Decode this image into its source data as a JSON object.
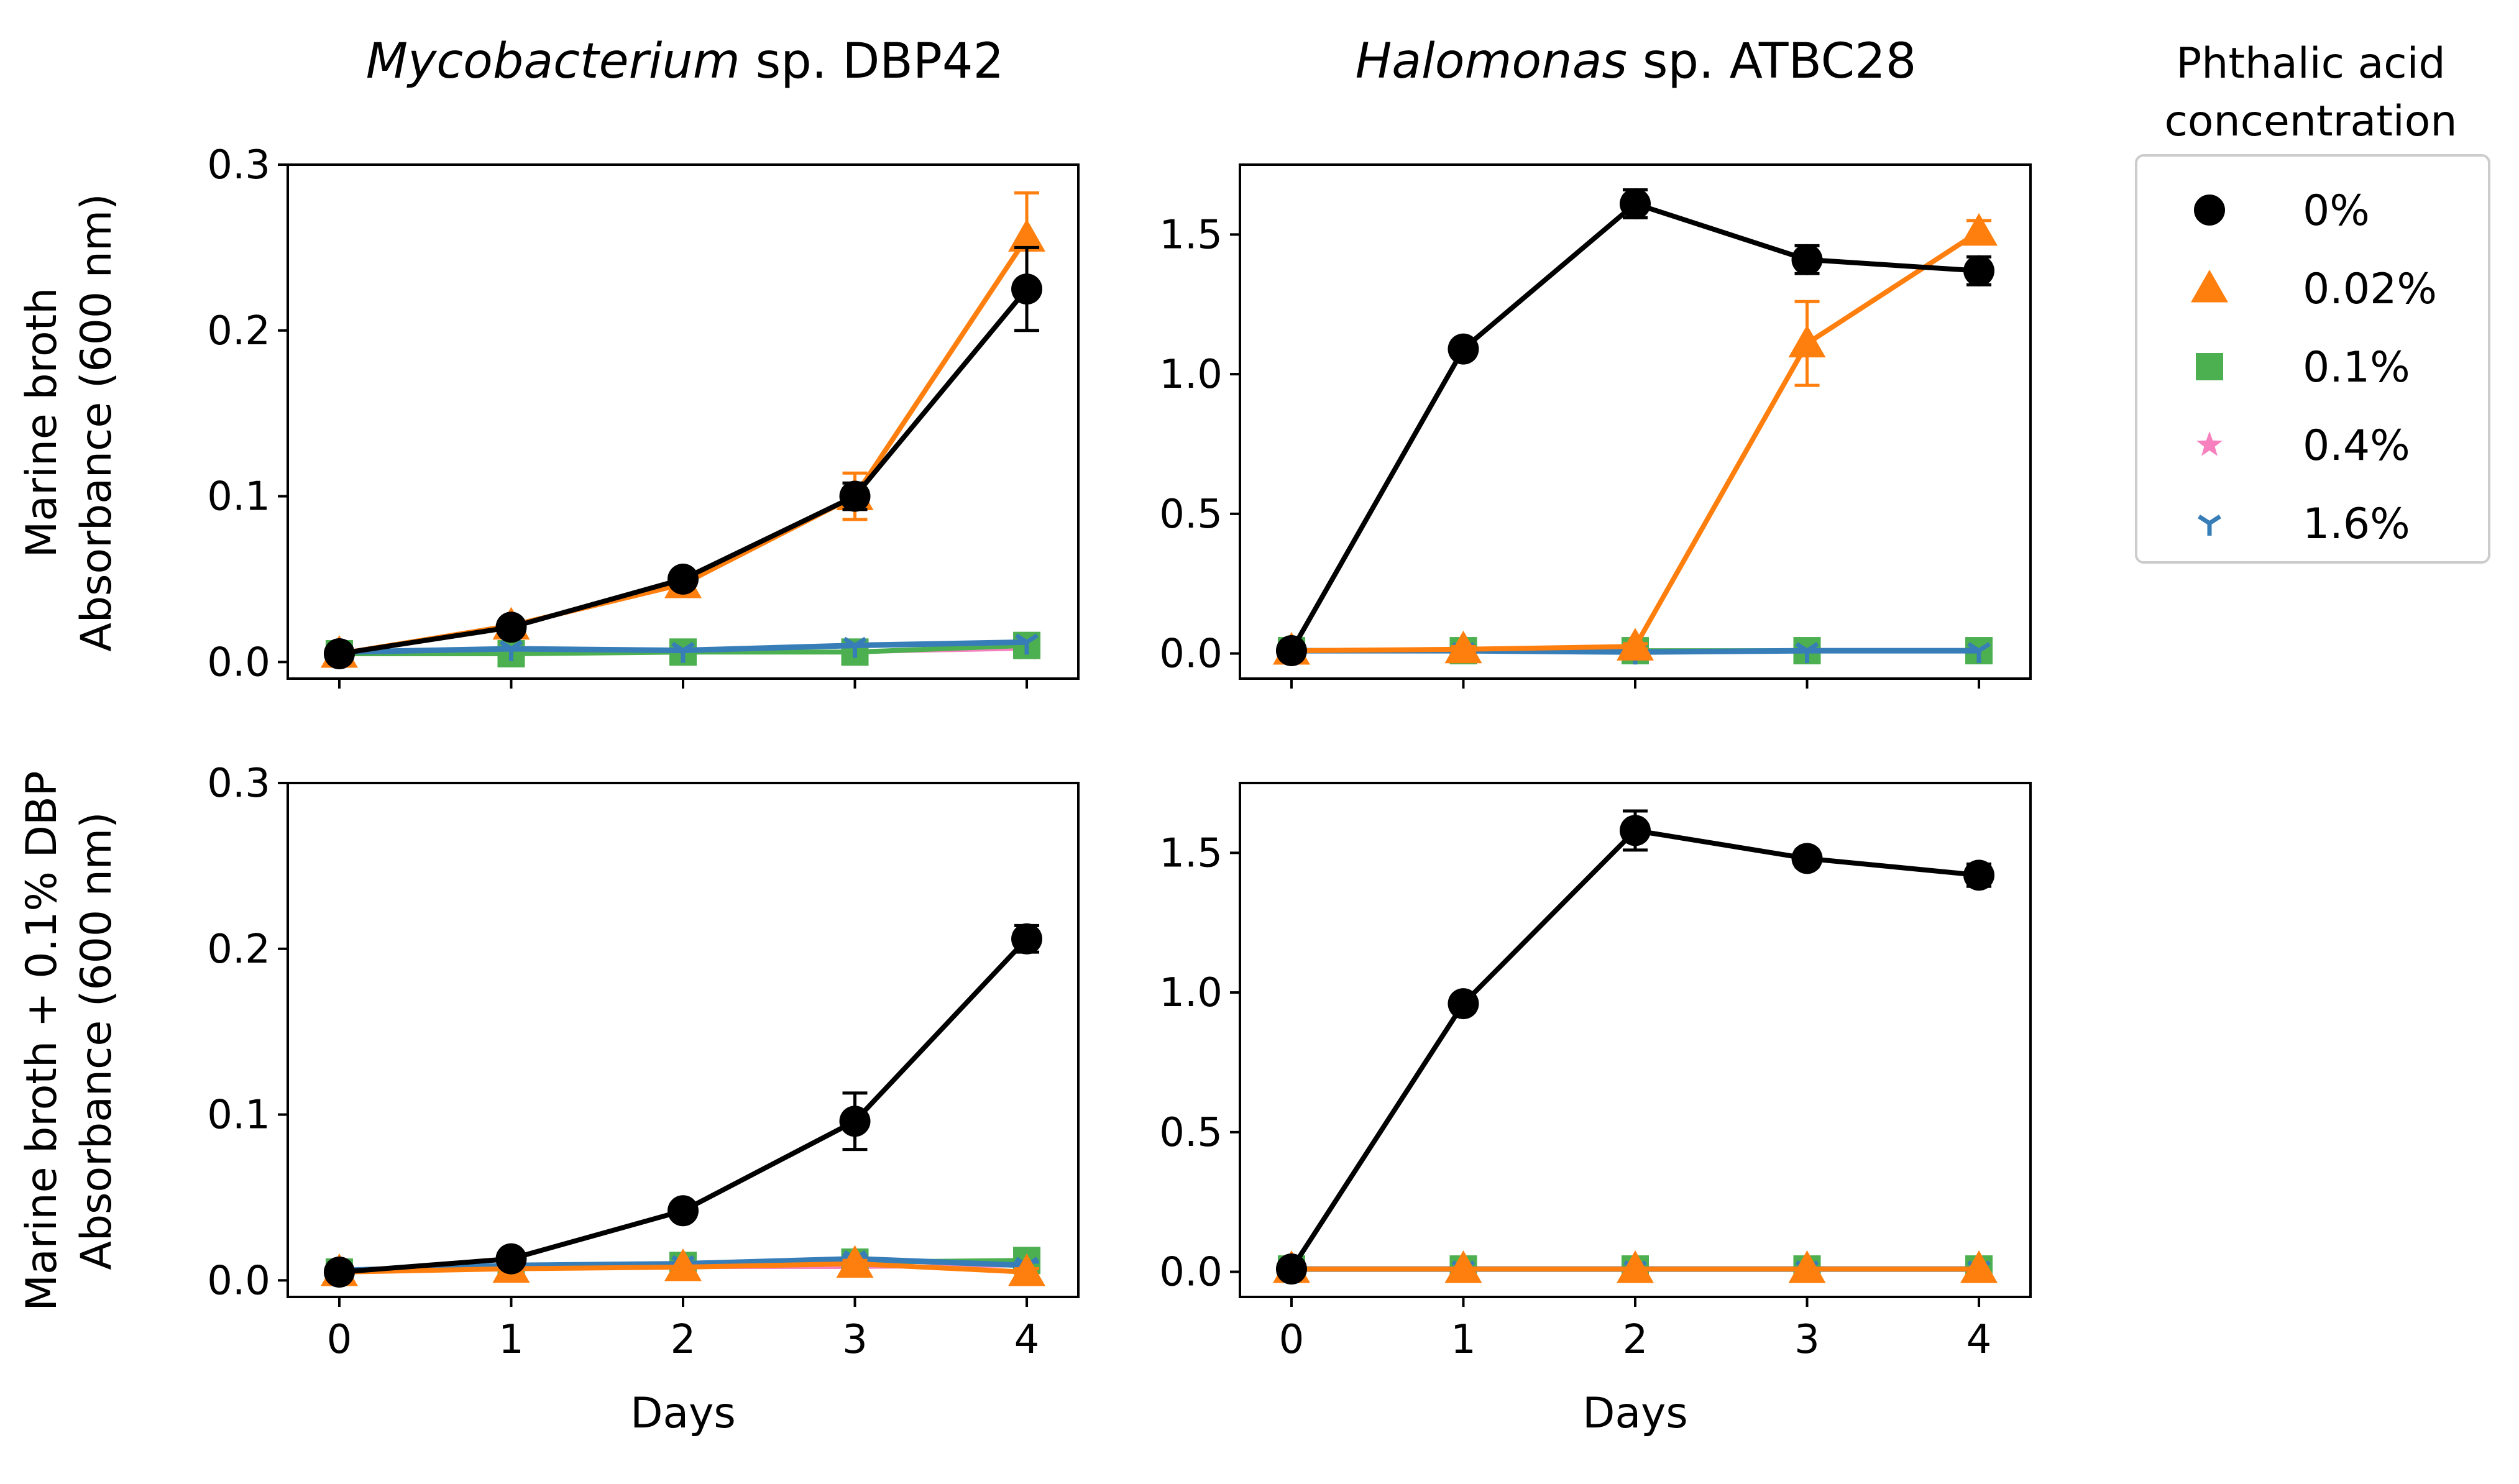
{
  "colors": {
    "0%": "#000000",
    "0.02%": "#ff7f0e",
    "0.1%": "#4caf50",
    "0.4%": "#f781bf",
    "1.6%": "#377eb8"
  },
  "titles": {
    "left_italic": "Mycobacterium",
    "left_rest": " sp. DBP42",
    "right_italic": "Halomonas",
    "right_rest": " sp. ATBC28"
  },
  "row_labels": {
    "top_line1": "Marine broth",
    "top_line2": "Absorbance (600 nm)",
    "bottom_line1": "Marine broth + 0.1% DBP",
    "bottom_line2": "Absorbance (600 nm)"
  },
  "legend": {
    "title_line1": "Phthalic acid",
    "title_line2": "concentration",
    "entries": [
      {
        "label": "0%",
        "marker": "circle",
        "color": "#000000"
      },
      {
        "label": "0.02%",
        "marker": "triangle",
        "color": "#ff7f0e"
      },
      {
        "label": "0.1%",
        "marker": "square",
        "color": "#4caf50"
      },
      {
        "label": "0.4%",
        "marker": "star",
        "color": "#f781bf"
      },
      {
        "label": "1.6%",
        "marker": "tri-down",
        "color": "#377eb8"
      }
    ]
  },
  "chart_data": [
    {
      "type": "line",
      "panel": "top-left",
      "title": "Mycobacterium sp. DBP42",
      "xlabel": "",
      "ylabel": "Marine broth Absorbance (600 nm)",
      "x": [
        0,
        1,
        2,
        3,
        4
      ],
      "xticks": [
        "0",
        "1",
        "2",
        "3",
        "4"
      ],
      "xlim": [
        -0.3,
        4.3
      ],
      "ylim": [
        -0.01,
        0.3
      ],
      "yticks": [
        "0.0",
        "0.1",
        "0.2",
        "0.3"
      ],
      "series": [
        {
          "name": "0%",
          "values": [
            0.005,
            0.021,
            0.05,
            0.1,
            0.225
          ],
          "errors": [
            0.001,
            0.003,
            0.003,
            0.008,
            0.025
          ]
        },
        {
          "name": "0.02%",
          "values": [
            0.005,
            0.022,
            0.047,
            0.1,
            0.256
          ],
          "errors": [
            0.001,
            0.003,
            0.004,
            0.014,
            0.027
          ]
        },
        {
          "name": "0.1%",
          "values": [
            0.005,
            0.005,
            0.006,
            0.006,
            0.01
          ],
          "errors": [
            0.001,
            0.001,
            0.001,
            0.001,
            0.001
          ]
        },
        {
          "name": "0.4%",
          "values": [
            0.005,
            0.005,
            0.006,
            0.006,
            0.008
          ],
          "errors": [
            0.001,
            0.001,
            0.001,
            0.001,
            0.001
          ]
        },
        {
          "name": "1.6%",
          "values": [
            0.006,
            0.008,
            0.007,
            0.01,
            0.012
          ],
          "errors": [
            0.001,
            0.001,
            0.001,
            0.001,
            0.001
          ]
        }
      ]
    },
    {
      "type": "line",
      "panel": "top-right",
      "title": "Halomonas sp. ATBC28",
      "xlabel": "",
      "ylabel": "",
      "x": [
        0,
        1,
        2,
        3,
        4
      ],
      "xticks": [
        "0",
        "1",
        "2",
        "3",
        "4"
      ],
      "xlim": [
        -0.3,
        4.3
      ],
      "ylim": [
        -0.09,
        1.75
      ],
      "yticks": [
        "0.0",
        "0.5",
        "1.0",
        "1.5"
      ],
      "series": [
        {
          "name": "0%",
          "values": [
            0.01,
            1.09,
            1.61,
            1.41,
            1.37
          ],
          "errors": [
            0.01,
            0.03,
            0.05,
            0.05,
            0.05
          ]
        },
        {
          "name": "0.02%",
          "values": [
            0.01,
            0.015,
            0.025,
            1.11,
            1.51
          ],
          "errors": [
            0.01,
            0.01,
            0.01,
            0.15,
            0.04
          ]
        },
        {
          "name": "0.1%",
          "values": [
            0.01,
            0.01,
            0.01,
            0.01,
            0.01
          ],
          "errors": [
            0.005,
            0.005,
            0.005,
            0.005,
            0.005
          ]
        },
        {
          "name": "0.4%",
          "values": [
            0.01,
            0.01,
            0.01,
            0.01,
            0.01
          ],
          "errors": [
            0.005,
            0.005,
            0.005,
            0.005,
            0.005
          ]
        },
        {
          "name": "1.6%",
          "values": [
            0.01,
            0.01,
            0.005,
            0.01,
            0.01
          ],
          "errors": [
            0.005,
            0.005,
            0.005,
            0.005,
            0.005
          ]
        }
      ]
    },
    {
      "type": "line",
      "panel": "bottom-left",
      "title": "",
      "xlabel": "Days",
      "ylabel": "Marine broth + 0.1% DBP Absorbance (600 nm)",
      "x": [
        0,
        1,
        2,
        3,
        4
      ],
      "xticks": [
        "0",
        "1",
        "2",
        "3",
        "4"
      ],
      "xlim": [
        -0.3,
        4.3
      ],
      "ylim": [
        -0.01,
        0.3
      ],
      "yticks": [
        "0.0",
        "0.1",
        "0.2",
        "0.3"
      ],
      "series": [
        {
          "name": "0%",
          "values": [
            0.005,
            0.013,
            0.042,
            0.096,
            0.206
          ],
          "errors": [
            0.001,
            0.002,
            0.003,
            0.017,
            0.008
          ]
        },
        {
          "name": "0.02%",
          "values": [
            0.005,
            0.007,
            0.008,
            0.01,
            0.005
          ],
          "errors": [
            0.001,
            0.001,
            0.001,
            0.002,
            0.002
          ]
        },
        {
          "name": "0.1%",
          "values": [
            0.005,
            0.008,
            0.009,
            0.011,
            0.012
          ],
          "errors": [
            0.001,
            0.001,
            0.001,
            0.002,
            0.002
          ]
        },
        {
          "name": "0.4%",
          "values": [
            0.005,
            0.007,
            0.008,
            0.008,
            0.009
          ],
          "errors": [
            0.001,
            0.001,
            0.001,
            0.001,
            0.001
          ]
        },
        {
          "name": "1.6%",
          "values": [
            0.006,
            0.009,
            0.01,
            0.013,
            0.009
          ],
          "errors": [
            0.001,
            0.001,
            0.001,
            0.002,
            0.002
          ]
        }
      ]
    },
    {
      "type": "line",
      "panel": "bottom-right",
      "title": "",
      "xlabel": "Days",
      "ylabel": "",
      "x": [
        0,
        1,
        2,
        3,
        4
      ],
      "xticks": [
        "0",
        "1",
        "2",
        "3",
        "4"
      ],
      "xlim": [
        -0.3,
        4.3
      ],
      "ylim": [
        -0.09,
        1.75
      ],
      "yticks": [
        "0.0",
        "0.5",
        "1.0",
        "1.5"
      ],
      "series": [
        {
          "name": "0%",
          "values": [
            0.01,
            0.96,
            1.58,
            1.48,
            1.42
          ],
          "errors": [
            0.01,
            0.03,
            0.07,
            0.03,
            0.04
          ]
        },
        {
          "name": "0.02%",
          "values": [
            0.01,
            0.01,
            0.01,
            0.01,
            0.01
          ],
          "errors": [
            0.005,
            0.005,
            0.005,
            0.005,
            0.005
          ]
        },
        {
          "name": "0.1%",
          "values": [
            0.01,
            0.01,
            0.01,
            0.01,
            0.01
          ],
          "errors": [
            0.005,
            0.005,
            0.005,
            0.005,
            0.005
          ]
        },
        {
          "name": "0.4%",
          "values": [
            0.01,
            0.01,
            0.01,
            0.01,
            0.01
          ],
          "errors": [
            0.005,
            0.005,
            0.005,
            0.005,
            0.005
          ]
        },
        {
          "name": "1.6%",
          "values": [
            0.01,
            0.01,
            0.01,
            0.01,
            0.01
          ],
          "errors": [
            0.005,
            0.005,
            0.005,
            0.005,
            0.005
          ]
        }
      ]
    }
  ]
}
